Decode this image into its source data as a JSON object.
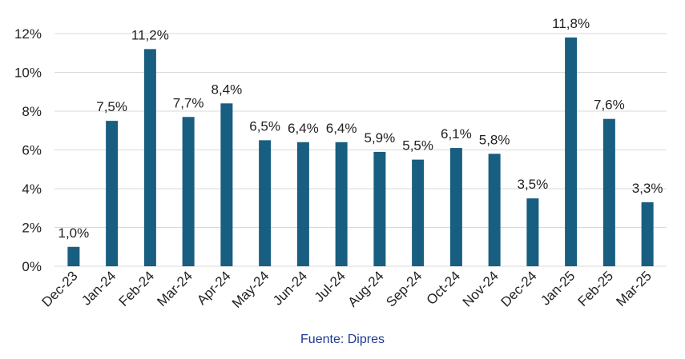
{
  "chart_data": {
    "type": "bar",
    "categories": [
      "Dec-23",
      "Jan-24",
      "Feb-24",
      "Mar-24",
      "Apr-24",
      "May-24",
      "Jun-24",
      "Jul-24",
      "Aug-24",
      "Sep-24",
      "Oct-24",
      "Nov-24",
      "Dec-24",
      "Jan-25",
      "Feb-25",
      "Mar-25"
    ],
    "values": [
      1.0,
      7.5,
      11.2,
      7.7,
      8.4,
      6.5,
      6.4,
      6.4,
      5.9,
      5.5,
      6.1,
      5.8,
      3.5,
      11.8,
      7.6,
      3.3
    ],
    "data_labels": [
      "1,0%",
      "7,5%",
      "11,2%",
      "7,7%",
      "8,4%",
      "6,5%",
      "6,4%",
      "6,4%",
      "5,9%",
      "5,5%",
      "6,1%",
      "5,8%",
      "3,5%",
      "11,8%",
      "7,6%",
      "3,3%"
    ],
    "y_ticks": [
      0,
      2,
      4,
      6,
      8,
      10,
      12
    ],
    "y_tick_labels": [
      "0%",
      "2%",
      "4%",
      "6%",
      "8%",
      "10%",
      "12%"
    ],
    "ylim": [
      0,
      12
    ],
    "grid": true,
    "legend": "none",
    "bar_color": "#185e80",
    "title": "",
    "xlabel": "",
    "ylabel": ""
  },
  "source_note": "Fuente: Dipres"
}
